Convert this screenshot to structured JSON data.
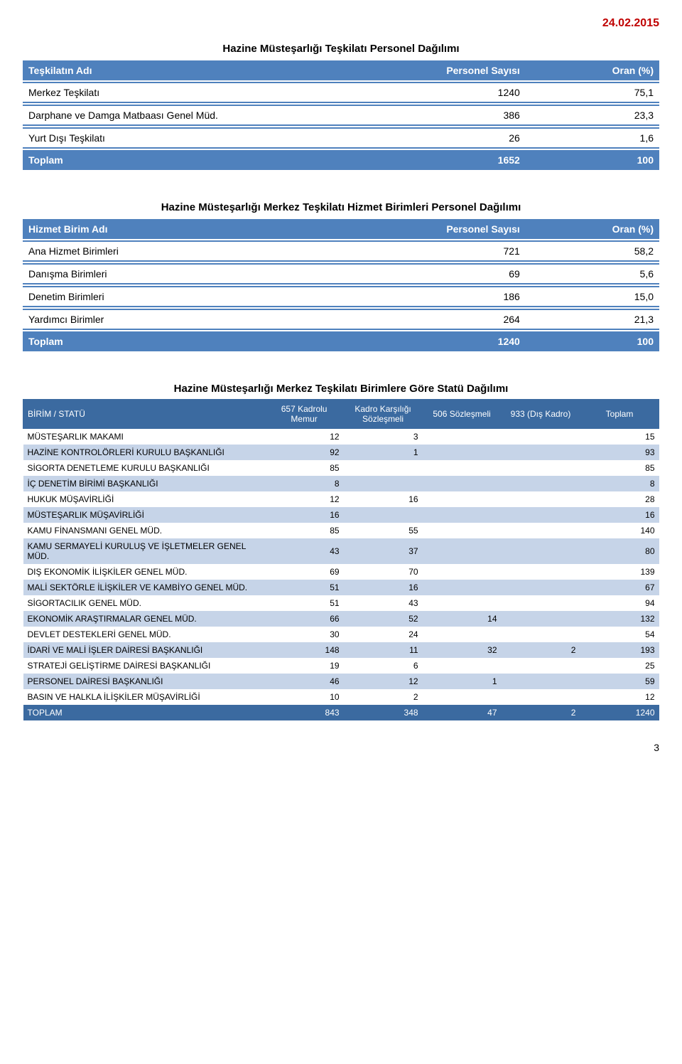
{
  "date": "24.02.2015",
  "table1": {
    "title": "Hazine Müsteşarlığı Teşkilatı Personel Dağılımı",
    "headers": [
      "Teşkilatın Adı",
      "Personel Sayısı",
      "Oran (%)"
    ],
    "rows": [
      {
        "label": "Merkez Teşkilatı",
        "count": "1240",
        "pct": "75,1"
      },
      {
        "label": "Darphane ve Damga Matbaası Genel Müd.",
        "count": "386",
        "pct": "23,3"
      },
      {
        "label": "Yurt Dışı Teşkilatı",
        "count": "26",
        "pct": "1,6"
      }
    ],
    "total": {
      "label": "Toplam",
      "count": "1652",
      "pct": "100"
    },
    "header_bg": "#4f81bd",
    "border_color": "#4f81bd"
  },
  "table2": {
    "title": "Hazine Müsteşarlığı Merkez Teşkilatı Hizmet Birimleri Personel Dağılımı",
    "headers": [
      "Hizmet Birim Adı",
      "Personel Sayısı",
      "Oran (%)"
    ],
    "rows": [
      {
        "label": "Ana Hizmet Birimleri",
        "count": "721",
        "pct": "58,2"
      },
      {
        "label": "Danışma Birimleri",
        "count": "69",
        "pct": "5,6"
      },
      {
        "label": "Denetim Birimleri",
        "count": "186",
        "pct": "15,0"
      },
      {
        "label": "Yardımcı Birimler",
        "count": "264",
        "pct": "21,3"
      }
    ],
    "total": {
      "label": "Toplam",
      "count": "1240",
      "pct": "100"
    }
  },
  "table3": {
    "title": "Hazine Müsteşarlığı Merkez Teşkilatı Birimlere Göre Statü Dağılımı",
    "headers": [
      "BİRİM / STATÜ",
      "657 Kadrolu Memur",
      "Kadro Karşılığı Sözleşmeli",
      "506 Sözleşmeli",
      "933 (Dış Kadro)",
      "Toplam"
    ],
    "rows": [
      {
        "label": "MÜSTEŞARLIK MAKAMI",
        "c1": "12",
        "c2": "3",
        "c3": "",
        "c4": "",
        "tot": "15"
      },
      {
        "label": "HAZİNE KONTROLÖRLERİ KURULU BAŞKANLIĞI",
        "c1": "92",
        "c2": "1",
        "c3": "",
        "c4": "",
        "tot": "93"
      },
      {
        "label": "SİGORTA DENETLEME KURULU BAŞKANLIĞI",
        "c1": "85",
        "c2": "",
        "c3": "",
        "c4": "",
        "tot": "85"
      },
      {
        "label": "İÇ DENETİM BİRİMİ BAŞKANLIĞI",
        "c1": "8",
        "c2": "",
        "c3": "",
        "c4": "",
        "tot": "8"
      },
      {
        "label": "HUKUK MÜŞAVİRLİĞİ",
        "c1": "12",
        "c2": "16",
        "c3": "",
        "c4": "",
        "tot": "28"
      },
      {
        "label": "MÜSTEŞARLIK MÜŞAVİRLİĞİ",
        "c1": "16",
        "c2": "",
        "c3": "",
        "c4": "",
        "tot": "16"
      },
      {
        "label": "KAMU FİNANSMANI GENEL MÜD.",
        "c1": "85",
        "c2": "55",
        "c3": "",
        "c4": "",
        "tot": "140"
      },
      {
        "label": "KAMU SERMAYELİ KURULUŞ VE İŞLETMELER GENEL MÜD.",
        "c1": "43",
        "c2": "37",
        "c3": "",
        "c4": "",
        "tot": "80"
      },
      {
        "label": "DIŞ EKONOMİK İLİŞKİLER GENEL MÜD.",
        "c1": "69",
        "c2": "70",
        "c3": "",
        "c4": "",
        "tot": "139"
      },
      {
        "label": "MALİ SEKTÖRLE İLİŞKİLER VE KAMBİYO GENEL MÜD.",
        "c1": "51",
        "c2": "16",
        "c3": "",
        "c4": "",
        "tot": "67"
      },
      {
        "label": "SİGORTACILIK GENEL MÜD.",
        "c1": "51",
        "c2": "43",
        "c3": "",
        "c4": "",
        "tot": "94"
      },
      {
        "label": "EKONOMİK ARAŞTIRMALAR GENEL MÜD.",
        "c1": "66",
        "c2": "52",
        "c3": "14",
        "c4": "",
        "tot": "132"
      },
      {
        "label": "DEVLET DESTEKLERİ GENEL MÜD.",
        "c1": "30",
        "c2": "24",
        "c3": "",
        "c4": "",
        "tot": "54"
      },
      {
        "label": "İDARİ VE MALİ İŞLER DAİRESİ BAŞKANLIĞI",
        "c1": "148",
        "c2": "11",
        "c3": "32",
        "c4": "2",
        "tot": "193"
      },
      {
        "label": "STRATEJİ GELİŞTİRME DAİRESİ BAŞKANLIĞI",
        "c1": "19",
        "c2": "6",
        "c3": "",
        "c4": "",
        "tot": "25"
      },
      {
        "label": "PERSONEL DAİRESİ BAŞKANLIĞI",
        "c1": "46",
        "c2": "12",
        "c3": "1",
        "c4": "",
        "tot": "59"
      },
      {
        "label": "BASIN VE HALKLA İLİŞKİLER MÜŞAVİRLİĞİ",
        "c1": "10",
        "c2": "2",
        "c3": "",
        "c4": "",
        "tot": "12"
      }
    ],
    "grand": {
      "label": "TOPLAM",
      "c1": "843",
      "c2": "348",
      "c3": "47",
      "c4": "2",
      "tot": "1240"
    },
    "header_bg": "#3b6aa0",
    "alt_row_bg": "#c6d4e8"
  },
  "page_number": "3"
}
